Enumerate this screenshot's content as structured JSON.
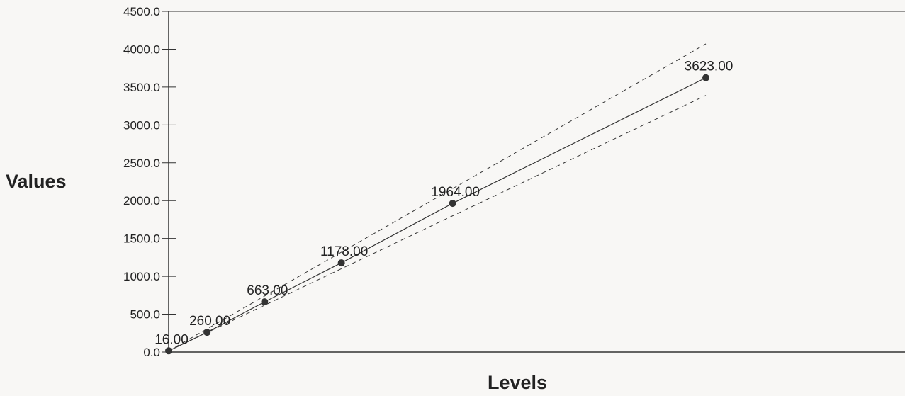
{
  "chart_data": {
    "type": "line",
    "title": "",
    "xlabel": "Levels",
    "ylabel": "Values",
    "ylim": [
      0,
      4500
    ],
    "y_ticks": [
      0,
      500,
      1000,
      1500,
      2000,
      2500,
      3000,
      3500,
      4000,
      4500
    ],
    "y_tick_labels": [
      "0.0",
      "500.0",
      "1000.0",
      "1500.0",
      "2000.0",
      "2500.0",
      "3000.0",
      "3500.0",
      "4000.0",
      "4500.0"
    ],
    "x_ticks_shown": false,
    "grid": false,
    "legend": "none",
    "series": [
      {
        "x": [
          0,
          0.5,
          1.25,
          2.25,
          3.7,
          7
        ],
        "values": [
          16,
          260,
          663,
          1178,
          1964,
          3623
        ],
        "labels": [
          "16.00",
          "260.00",
          "663.00",
          "1178.00",
          "1964.00",
          "3623.00"
        ]
      }
    ],
    "bounds": {
      "upper": {
        "x": [
          0,
          7
        ],
        "values": [
          16,
          4070
        ]
      },
      "lower": {
        "x": [
          0,
          7
        ],
        "values": [
          16,
          3390
        ]
      }
    },
    "colors": {
      "background": "#f8f7f5",
      "line": "#333333",
      "marker": "#333333",
      "text": "#222222"
    }
  }
}
